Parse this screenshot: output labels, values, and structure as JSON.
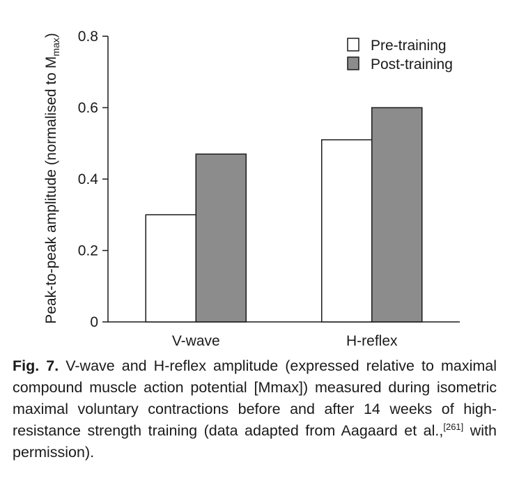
{
  "chart_data": {
    "type": "bar",
    "categories": [
      "V-wave",
      "H-reflex"
    ],
    "series": [
      {
        "name": "Pre-training",
        "values": [
          0.3,
          0.51
        ],
        "color": "#ffffff"
      },
      {
        "name": "Post-training",
        "values": [
          0.47,
          0.6
        ],
        "color": "#8c8c8c"
      }
    ],
    "ylabel_main": "Peak-to-peak amplitude (normalised to M",
    "ylabel_sub": "max",
    "ylabel_close": ")",
    "ylim": [
      0,
      0.8
    ],
    "yticks": [
      0,
      0.2,
      0.4,
      0.6,
      0.8
    ],
    "ytick_labels": [
      "0",
      "0.2",
      "0.4",
      "0.6",
      "0.8"
    ],
    "grid": false,
    "legend_position": "top-right"
  },
  "caption": {
    "label": "Fig. 7.",
    "text": " V-wave and H-reflex amplitude (expressed relative to maximal compound muscle action potential [Mmax]) measured during isometric maximal voluntary contractions before and after 14 weeks of high-resistance strength training (data adapted from Aagaard et al.,",
    "ref": "[261]",
    "end": " with permission)."
  }
}
